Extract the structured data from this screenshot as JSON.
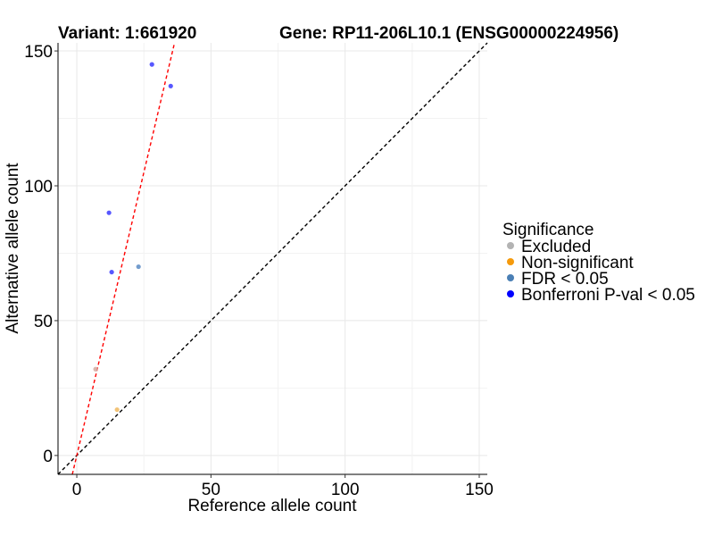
{
  "chart_data": {
    "type": "scatter",
    "title_left": "Variant: 1:661920",
    "title_right": "Gene: RP11-206L10.1 (ENSG00000224956)",
    "xlabel": "Reference allele count",
    "ylabel": "Alternative allele count",
    "xlim": [
      -7,
      153
    ],
    "ylim": [
      -7,
      153
    ],
    "x_ticks": [
      0,
      50,
      100,
      150
    ],
    "y_ticks": [
      0,
      50,
      100,
      150
    ],
    "grid": true,
    "legend": {
      "title": "Significance",
      "position": "right",
      "items": [
        {
          "label": "Excluded",
          "color": "#b3b3b3"
        },
        {
          "label": "Non-significant",
          "color": "#f59a0c"
        },
        {
          "label": "FDR < 0.05",
          "color": "#4a7fb5"
        },
        {
          "label": "Bonferroni P-val < 0.05",
          "color": "#0000ff"
        }
      ]
    },
    "series": [
      {
        "category": "Excluded",
        "color": "#d4a9a0",
        "points": [
          {
            "x": 7,
            "y": 32
          }
        ]
      },
      {
        "category": "Non-significant",
        "color": "#f0b860",
        "points": [
          {
            "x": 15,
            "y": 17
          }
        ]
      },
      {
        "category": "FDR < 0.05",
        "color": "#5b8bc4",
        "points": [
          {
            "x": 23,
            "y": 70
          }
        ]
      },
      {
        "category": "Bonferroni P-val < 0.05",
        "color": "#3a3aff",
        "points": [
          {
            "x": 28,
            "y": 145
          },
          {
            "x": 35,
            "y": 137
          },
          {
            "x": 12,
            "y": 90
          },
          {
            "x": 13,
            "y": 68
          }
        ]
      }
    ],
    "reference_lines": [
      {
        "slope": 1,
        "intercept": 0,
        "color": "#000000",
        "style": "dashed"
      },
      {
        "slope": 4.2,
        "intercept": 0,
        "color": "#ff0000",
        "style": "dashed"
      }
    ]
  }
}
